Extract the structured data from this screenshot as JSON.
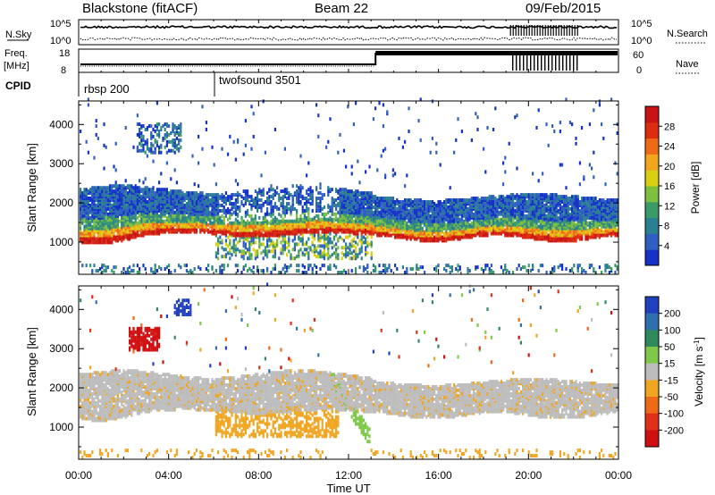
{
  "header": {
    "station": "Blackstone (fitACF)",
    "beam": "Beam 22",
    "date": "09/Feb/2015"
  },
  "summary_panel": {
    "nsky_label": "N.Sky",
    "nsky_ticks": [
      "10^5",
      "10^0"
    ],
    "nsearch_label": "N.Search",
    "freq_label_1": "Freq.",
    "freq_label_2": "[MHz]",
    "freq_ticks": [
      "18",
      "8"
    ],
    "nave_label": "Nave",
    "nave_ticks": [
      "60",
      "0"
    ],
    "cpid_label": "CPID",
    "cpid_segments": [
      {
        "name": "rbsp 200",
        "start_hour": 0
      },
      {
        "name": "twofsound 3501",
        "start_hour": 6.05
      }
    ]
  },
  "chart_data": [
    {
      "type": "heatmap",
      "title": "",
      "xlabel": "Time UT",
      "ylabel": "Slant Range [km]",
      "xlim": [
        0,
        24
      ],
      "ylim": [
        180,
        4600
      ],
      "x_ticks": [
        "00:00",
        "04:00",
        "08:00",
        "12:00",
        "16:00",
        "20:00",
        "00:00"
      ],
      "y_ticks": [
        1000,
        2000,
        3000,
        4000
      ],
      "colorbar": {
        "label": "Power [dB]",
        "ticks": [
          4,
          8,
          12,
          16,
          20,
          24,
          28
        ],
        "range": [
          0,
          32
        ],
        "colors": [
          "#1432c8",
          "#2f5fc0",
          "#2a8090",
          "#3a9a68",
          "#7fbf40",
          "#d9d012",
          "#f2a61e",
          "#ef6a18",
          "#dd2c10",
          "#c81414"
        ]
      },
      "features": [
        {
          "desc": "main scatter band (power)",
          "start_hour": 0,
          "end_hour": 13,
          "range_km": [
            900,
            2400
          ],
          "peak_db": 28
        },
        {
          "desc": "main scatter band (power)",
          "start_hour": 13,
          "end_hour": 24,
          "range_km": [
            1000,
            2300
          ],
          "peak_db": 26
        },
        {
          "desc": "patch",
          "start_hour": 2.5,
          "end_hour": 4.5,
          "range_km": [
            3200,
            4100
          ],
          "peak_db": 12
        }
      ]
    },
    {
      "type": "heatmap",
      "title": "",
      "xlabel": "Time UT",
      "ylabel": "Slant Range [km]",
      "xlim": [
        0,
        24
      ],
      "ylim": [
        180,
        4600
      ],
      "x_ticks": [
        "00:00",
        "04:00",
        "08:00",
        "12:00",
        "16:00",
        "20:00",
        "00:00"
      ],
      "y_ticks": [
        1000,
        2000,
        3000,
        4000
      ],
      "colorbar": {
        "label": "Velocity [m s^-1]",
        "ticks": [
          200,
          100,
          50,
          15,
          -15,
          -50,
          -100,
          -200
        ],
        "colors": [
          "#2040c0",
          "#2f6fb0",
          "#2e8a5c",
          "#7ec84a",
          "#bdbdbd",
          "#f0a622",
          "#ef6a18",
          "#e0301a",
          "#d01010"
        ]
      },
      "features": [
        {
          "desc": "ground scatter (grey)",
          "start_hour": 0,
          "end_hour": 24,
          "range_km": [
            1200,
            2300
          ],
          "velocity": 0
        },
        {
          "desc": "red patch",
          "start_hour": 2.2,
          "end_hour": 3.5,
          "range_km": [
            2900,
            3500
          ],
          "velocity": -200
        },
        {
          "desc": "green streak",
          "start_hour": 11.2,
          "end_hour": 12.9,
          "range_km": [
            700,
            2200
          ],
          "velocity": 40
        }
      ]
    }
  ],
  "axis": {
    "x_title": "Time UT",
    "time_ticks": [
      "00:00",
      "04:00",
      "08:00",
      "12:00",
      "16:00",
      "20:00",
      "00:00"
    ]
  }
}
